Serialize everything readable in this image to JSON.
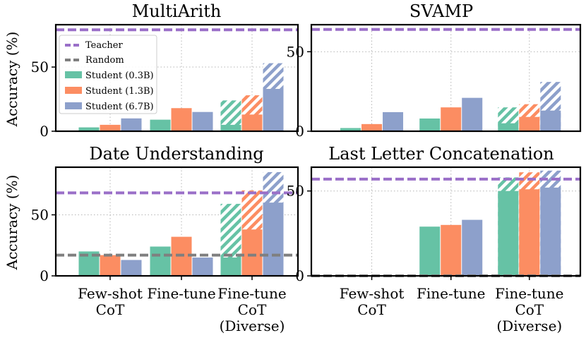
{
  "ylabel": "Accuracy (%)",
  "categories": [
    "Few-shot\nCoT",
    "Fine-tune",
    "Fine-tune\nCoT\n(Diverse)"
  ],
  "colors": {
    "Student (0.3B)": "#66c2a5",
    "Student (1.3B)": "#fc8d62",
    "Student (6.7B)": "#8da0cb",
    "Teacher": "#9a6fc8",
    "Random": "#7f7f7f"
  },
  "legend": {
    "placement": "upper-left (MultiArith panel)",
    "entries": [
      "Teacher",
      "Random",
      "Student (0.3B)",
      "Student (1.3B)",
      "Student (6.7B)"
    ]
  },
  "chart_data": [
    {
      "type": "bar",
      "title": "MultiArith",
      "ylim": [
        0,
        83
      ],
      "yticks": [
        0,
        50
      ],
      "teacher": 79,
      "random": null,
      "series": [
        {
          "name": "Student (0.3B)",
          "values": [
            3,
            9,
            5
          ],
          "diverse_max": 24
        },
        {
          "name": "Student (1.3B)",
          "values": [
            5,
            18,
            13
          ],
          "diverse_max": 28
        },
        {
          "name": "Student (6.7B)",
          "values": [
            10,
            15,
            33
          ],
          "diverse_max": 53
        }
      ]
    },
    {
      "type": "bar",
      "title": "SVAMP",
      "ylim": [
        0,
        67
      ],
      "yticks": [
        0,
        50
      ],
      "teacher": 64,
      "random": null,
      "series": [
        {
          "name": "Student (0.3B)",
          "values": [
            2,
            8,
            5
          ],
          "diverse_max": 15
        },
        {
          "name": "Student (1.3B)",
          "values": [
            4.5,
            15,
            9
          ],
          "diverse_max": 17
        },
        {
          "name": "Student (6.7B)",
          "values": [
            12,
            21,
            13
          ],
          "diverse_max": 31
        }
      ]
    },
    {
      "type": "bar",
      "title": "Date Understanding",
      "ylim": [
        0,
        89
      ],
      "yticks": [
        0,
        50
      ],
      "teacher": 68,
      "random": 17,
      "series": [
        {
          "name": "Student (0.3B)",
          "values": [
            20,
            24,
            15
          ],
          "diverse_max": 59
        },
        {
          "name": "Student (1.3B)",
          "values": [
            17,
            32,
            38
          ],
          "diverse_max": 70
        },
        {
          "name": "Student (6.7B)",
          "values": [
            13,
            15,
            60
          ],
          "diverse_max": 85
        }
      ]
    },
    {
      "type": "bar",
      "title": "Last Letter Concatenation",
      "ylim": [
        0,
        64
      ],
      "yticks": [
        0,
        50
      ],
      "teacher": 57,
      "random": 0,
      "series": [
        {
          "name": "Student (0.3B)",
          "values": [
            0,
            29,
            50
          ],
          "diverse_max": 58
        },
        {
          "name": "Student (1.3B)",
          "values": [
            0,
            30,
            51
          ],
          "diverse_max": 61
        },
        {
          "name": "Student (6.7B)",
          "values": [
            0,
            33,
            52
          ],
          "diverse_max": 62
        }
      ]
    }
  ]
}
